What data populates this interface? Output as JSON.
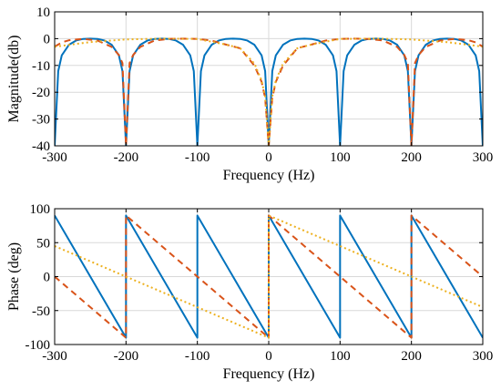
{
  "chart_data": [
    {
      "type": "line",
      "xlabel": "Frequency (Hz)",
      "ylabel": "Magnitude(db)",
      "xlim": [
        -300,
        300
      ],
      "ylim": [
        -40,
        10
      ],
      "xticks": [
        -300,
        -200,
        -100,
        0,
        100,
        200,
        300
      ],
      "yticks": [
        -40,
        -30,
        -20,
        -10,
        0,
        10
      ],
      "xtick_labels": [
        "-300",
        "-200",
        "-100",
        "0",
        "100",
        "200",
        "300"
      ],
      "ytick_labels": [
        "-40",
        "-30",
        "-20",
        "-10",
        "0",
        "10"
      ],
      "grid": true,
      "series": [
        {
          "color": "#0072BD",
          "style": "solid",
          "x": [
            -300,
            -295,
            -290,
            -280,
            -270,
            -260,
            -250,
            -240,
            -230,
            -220,
            -210,
            -205,
            -200,
            -195,
            -190,
            -180,
            -170,
            -160,
            -150,
            -140,
            -130,
            -120,
            -110,
            -105,
            -100,
            -95,
            -90,
            -80,
            -70,
            -60,
            -50,
            -40,
            -30,
            -20,
            -10,
            -5,
            0,
            5,
            10,
            20,
            30,
            40,
            50,
            60,
            70,
            80,
            90,
            95,
            100,
            105,
            110,
            120,
            130,
            140,
            150,
            160,
            170,
            180,
            190,
            195,
            200,
            205,
            210,
            220,
            230,
            240,
            250,
            260,
            270,
            280,
            290,
            295,
            300
          ],
          "y": [
            -40,
            -12.1,
            -6.2,
            -2.3,
            -0.7,
            -0.1,
            0,
            -0.1,
            -0.7,
            -2.3,
            -6.2,
            -12.1,
            -40,
            -12.1,
            -6.2,
            -2.3,
            -0.7,
            -0.1,
            0,
            -0.1,
            -0.7,
            -2.3,
            -6.2,
            -12.1,
            -40,
            -12.1,
            -6.2,
            -2.3,
            -0.7,
            -0.1,
            0,
            -0.1,
            -0.7,
            -2.3,
            -6.2,
            -12.1,
            -40,
            -12.1,
            -6.2,
            -2.3,
            -0.7,
            -0.1,
            0,
            -0.1,
            -0.7,
            -2.3,
            -6.2,
            -12.1,
            -40,
            -12.1,
            -6.2,
            -2.3,
            -0.7,
            -0.1,
            0,
            -0.1,
            -0.7,
            -2.3,
            -6.2,
            -12.1,
            -40,
            -12.1,
            -6.2,
            -2.3,
            -0.7,
            -0.1,
            0,
            -0.1,
            -0.7,
            -2.3,
            -6.2,
            -12.1,
            -40
          ]
        },
        {
          "color": "#D95319",
          "style": "dashed",
          "x": [
            -300,
            -290,
            -280,
            -260,
            -240,
            -220,
            -210,
            -205,
            -200,
            -195,
            -190,
            -180,
            -160,
            -140,
            -120,
            -100,
            -80,
            -60,
            -40,
            -20,
            -10,
            -5,
            0,
            5,
            10,
            20,
            40,
            60,
            80,
            100,
            120,
            140,
            160,
            180,
            190,
            195,
            200,
            205,
            210,
            220,
            240,
            260,
            280,
            290,
            300
          ],
          "y": [
            -3,
            -1.4,
            -0.6,
            -0.1,
            -0.7,
            -3.1,
            -6.1,
            -9.1,
            -40,
            -9.1,
            -6.1,
            -3.1,
            -0.7,
            -0.1,
            0,
            -0.1,
            -0.7,
            -2.2,
            -3.6,
            -10.1,
            -16.1,
            -22.1,
            -40,
            -22.1,
            -16.1,
            -10.1,
            -3.6,
            -2.2,
            -0.7,
            -0.1,
            0,
            -0.1,
            -0.7,
            -3.1,
            -6.1,
            -9.1,
            -40,
            -9.1,
            -6.1,
            -3.1,
            -0.7,
            -0.1,
            -0.6,
            -1.4,
            -3
          ]
        },
        {
          "color": "#EDB120",
          "style": "dotted",
          "x": [
            -300,
            -250,
            -200,
            -150,
            -100,
            -60,
            -40,
            -20,
            -10,
            -5,
            0,
            5,
            10,
            20,
            40,
            60,
            100,
            150,
            200,
            250,
            300
          ],
          "y": [
            -3,
            -1.3,
            -0.3,
            0,
            -0.1,
            -2.2,
            -3.6,
            -9.3,
            -15.6,
            -21.6,
            -40,
            -21.6,
            -15.6,
            -9.3,
            -3.6,
            -2.2,
            -0.1,
            0,
            -0.3,
            -1.3,
            -3
          ]
        }
      ]
    },
    {
      "type": "line",
      "xlabel": "Frequency (Hz)",
      "ylabel": "Phase (deg)",
      "xlim": [
        -300,
        300
      ],
      "ylim": [
        -100,
        100
      ],
      "xticks": [
        -300,
        -200,
        -100,
        0,
        100,
        200,
        300
      ],
      "yticks": [
        -100,
        -50,
        0,
        50,
        100
      ],
      "xtick_labels": [
        "-300",
        "-200",
        "-100",
        "0",
        "100",
        "200",
        "300"
      ],
      "ytick_labels": [
        "-100",
        "-50",
        "0",
        "50",
        "100"
      ],
      "grid": true,
      "series": [
        {
          "color": "#0072BD",
          "style": "solid",
          "x": [
            -300,
            -200,
            -200,
            -100,
            -100,
            0,
            0,
            100,
            100,
            200,
            200,
            300
          ],
          "y": [
            90,
            -90,
            90,
            -90,
            90,
            -90,
            90,
            -90,
            90,
            -90,
            90,
            -90
          ]
        },
        {
          "color": "#D95319",
          "style": "dashed",
          "x": [
            -300,
            -200,
            -200,
            0,
            0,
            200,
            200,
            300
          ],
          "y": [
            0,
            -90,
            90,
            -90,
            90,
            -90,
            90,
            0
          ]
        },
        {
          "color": "#EDB120",
          "style": "dotted",
          "x": [
            -300,
            0,
            0,
            300
          ],
          "y": [
            45,
            -90,
            90,
            -45
          ]
        }
      ]
    }
  ]
}
